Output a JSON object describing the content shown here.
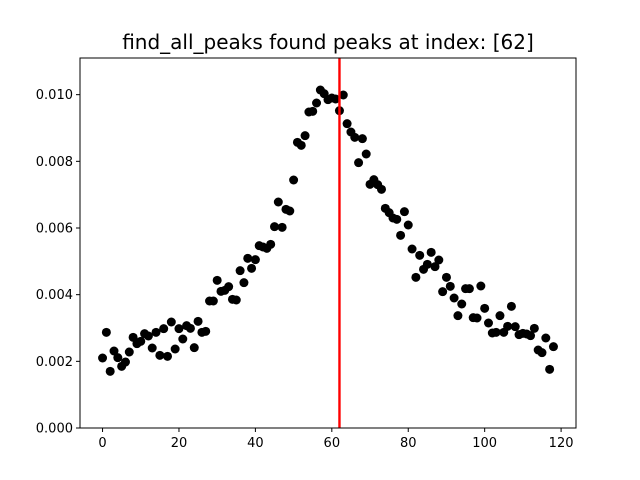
{
  "chart_data": {
    "type": "scatter",
    "title": "find_all_peaks found peaks at index: [62]",
    "xlabel": "",
    "ylabel": "",
    "xlim": [
      -5.9,
      123.9
    ],
    "ylim": [
      0.0,
      0.0111
    ],
    "grid": false,
    "x_ticks": [
      0,
      20,
      40,
      60,
      80,
      100,
      120
    ],
    "x_tick_labels": [
      "0",
      "20",
      "40",
      "60",
      "80",
      "100",
      "120"
    ],
    "y_ticks": [
      0.0,
      0.002,
      0.004,
      0.006,
      0.008,
      0.01
    ],
    "y_tick_labels": [
      "0.000",
      "0.002",
      "0.004",
      "0.006",
      "0.008",
      "0.010"
    ],
    "peak_index": 62,
    "peak_color": "#ff0000",
    "point_color": "#000000",
    "series": [
      {
        "x": [
          0,
          1,
          2,
          3,
          4,
          5,
          6,
          7,
          8,
          9,
          10,
          11,
          12,
          13,
          14,
          15,
          16,
          17,
          18,
          19,
          20,
          21,
          22,
          23,
          24,
          25,
          26,
          27,
          28,
          29,
          30,
          31,
          32,
          33,
          34,
          35,
          36,
          37,
          38,
          39,
          40,
          41,
          42,
          43,
          44,
          45,
          46,
          47,
          48,
          49,
          50,
          51,
          52,
          53,
          54,
          55,
          56,
          57,
          58,
          59,
          60,
          61,
          62,
          63,
          64,
          65,
          66,
          67,
          68,
          69,
          70,
          71,
          72,
          73,
          74,
          75,
          76,
          77,
          78,
          79,
          80,
          81,
          82,
          83,
          84,
          85,
          86,
          87,
          88,
          89,
          90,
          91,
          92,
          93,
          94,
          95,
          96,
          97,
          98,
          99,
          100,
          101,
          102,
          103,
          104,
          105,
          106,
          107,
          108,
          109,
          110,
          111,
          112,
          113,
          114,
          115,
          116,
          117,
          118
        ],
        "y": [
          0.0021,
          0.00287,
          0.0017,
          0.00231,
          0.00211,
          0.00185,
          0.00198,
          0.00228,
          0.00272,
          0.00253,
          0.0026,
          0.00283,
          0.00276,
          0.0024,
          0.00287,
          0.00218,
          0.00298,
          0.00215,
          0.00318,
          0.00237,
          0.00298,
          0.00267,
          0.00307,
          0.00299,
          0.00241,
          0.0032,
          0.00287,
          0.0029,
          0.00381,
          0.00381,
          0.00443,
          0.0041,
          0.00413,
          0.00424,
          0.00386,
          0.00384,
          0.00472,
          0.00436,
          0.00509,
          0.00479,
          0.00505,
          0.00547,
          0.00543,
          0.00539,
          0.00551,
          0.00604,
          0.00678,
          0.00602,
          0.00656,
          0.00651,
          0.00744,
          0.00857,
          0.00848,
          0.00877,
          0.00948,
          0.0095,
          0.00975,
          0.01014,
          0.01003,
          0.00985,
          0.0099,
          0.00987,
          0.00952,
          0.00999,
          0.00913,
          0.00888,
          0.00872,
          0.00796,
          0.00868,
          0.00822,
          0.00731,
          0.00745,
          0.0073,
          0.00716,
          0.00659,
          0.00646,
          0.0063,
          0.00626,
          0.00578,
          0.00649,
          0.00609,
          0.00537,
          0.00452,
          0.00518,
          0.00476,
          0.00491,
          0.00527,
          0.00484,
          0.00504,
          0.00409,
          0.00452,
          0.00425,
          0.0039,
          0.00337,
          0.00372,
          0.00418,
          0.00418,
          0.00331,
          0.0033,
          0.00426,
          0.00359,
          0.00315,
          0.00285,
          0.00287,
          0.00337,
          0.00287,
          0.00305,
          0.00365,
          0.00304,
          0.0028,
          0.00284,
          0.00282,
          0.00277,
          0.00299,
          0.00234,
          0.00226,
          0.0027,
          0.00176,
          0.00244
        ]
      }
    ]
  }
}
